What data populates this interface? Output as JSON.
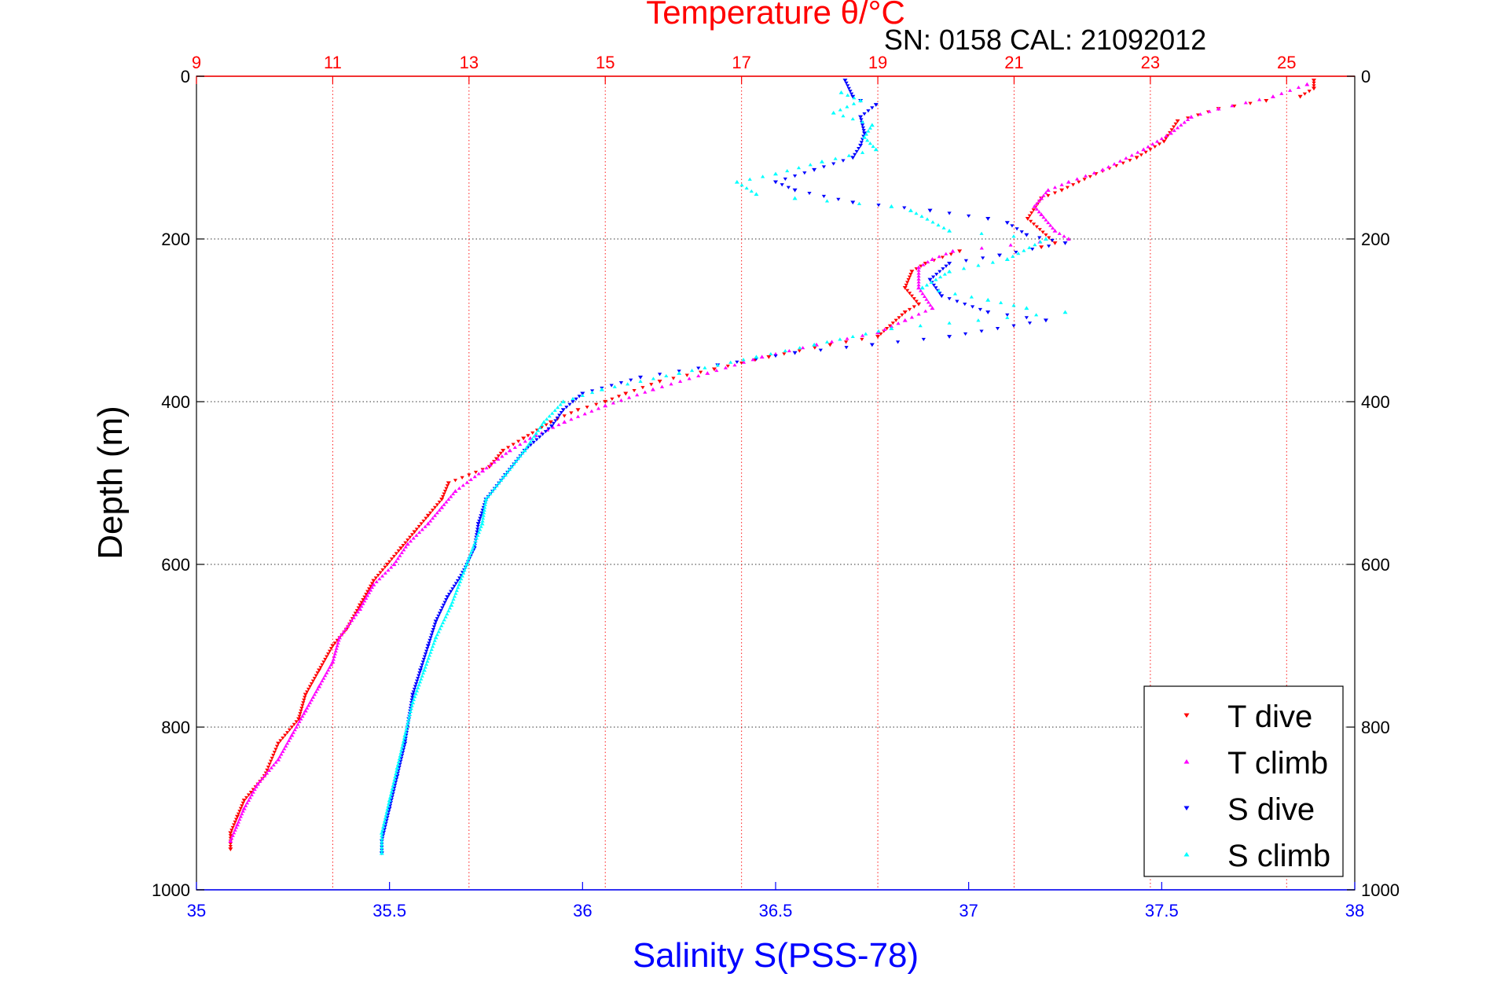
{
  "chart_data": {
    "type": "scatter",
    "title": "Temperature θ/°C",
    "subtitle": "SN: 0158  CAL: 21092012",
    "xlabel": "Salinity S(PSS-78)",
    "ylabel": "Depth (m)",
    "x_top": {
      "label": "Temperature θ/°C",
      "range": [
        9,
        26
      ],
      "ticks": [
        9,
        11,
        13,
        15,
        17,
        19,
        21,
        23,
        25
      ]
    },
    "x_bottom": {
      "label": "Salinity S(PSS-78)",
      "range": [
        35,
        38
      ],
      "ticks": [
        35,
        35.5,
        36,
        36.5,
        37,
        37.5,
        38
      ]
    },
    "y": {
      "range": [
        0,
        1000
      ],
      "reversed": true,
      "ticks": [
        0,
        200,
        400,
        600,
        800,
        1000
      ]
    },
    "grid": "dotted",
    "legend_position": "bottom-right",
    "colors": {
      "t_dive": "#ff0000",
      "t_climb": "#ff00ff",
      "s_dive": "#0000ff",
      "s_climb": "#00ffff",
      "top_axis": "#ff0000",
      "bottom_axis": "#0000ff"
    },
    "series": [
      {
        "name": "T dive",
        "axis": "top",
        "marker": "triangle-down",
        "points": [
          [
            25.4,
            5
          ],
          [
            25.4,
            15
          ],
          [
            25.2,
            25
          ],
          [
            24.7,
            30
          ],
          [
            24.0,
            40
          ],
          [
            23.4,
            55
          ],
          [
            23.2,
            80
          ],
          [
            22.8,
            100
          ],
          [
            22.2,
            120
          ],
          [
            21.7,
            140
          ],
          [
            21.4,
            150
          ],
          [
            21.2,
            175
          ],
          [
            21.6,
            205
          ],
          [
            21.4,
            210
          ],
          [
            20.2,
            215
          ],
          [
            19.7,
            230
          ],
          [
            19.5,
            240
          ],
          [
            19.4,
            260
          ],
          [
            19.6,
            280
          ],
          [
            19.4,
            290
          ],
          [
            19.0,
            320
          ],
          [
            18.3,
            330
          ],
          [
            17.4,
            345
          ],
          [
            16.6,
            360
          ],
          [
            15.8,
            375
          ],
          [
            15.3,
            390
          ],
          [
            15.0,
            400
          ],
          [
            14.6,
            410
          ],
          [
            14.2,
            425
          ],
          [
            13.8,
            445
          ],
          [
            13.5,
            460
          ],
          [
            13.3,
            480
          ],
          [
            12.7,
            500
          ],
          [
            12.6,
            520
          ],
          [
            12.4,
            540
          ],
          [
            12.2,
            560
          ],
          [
            12.0,
            580
          ],
          [
            11.8,
            600
          ],
          [
            11.6,
            620
          ],
          [
            11.4,
            650
          ],
          [
            11.2,
            680
          ],
          [
            11.0,
            700
          ],
          [
            10.8,
            730
          ],
          [
            10.6,
            760
          ],
          [
            10.5,
            790
          ],
          [
            10.2,
            820
          ],
          [
            10.0,
            860
          ],
          [
            9.7,
            890
          ],
          [
            9.6,
            910
          ],
          [
            9.5,
            930
          ],
          [
            9.5,
            950
          ]
        ]
      },
      {
        "name": "T climb",
        "axis": "top",
        "marker": "triangle-up",
        "points": [
          [
            25.3,
            10
          ],
          [
            24.8,
            25
          ],
          [
            24.0,
            40
          ],
          [
            23.6,
            50
          ],
          [
            23.3,
            70
          ],
          [
            22.9,
            90
          ],
          [
            22.3,
            115
          ],
          [
            21.8,
            130
          ],
          [
            21.5,
            140
          ],
          [
            21.4,
            150
          ],
          [
            21.3,
            160
          ],
          [
            21.4,
            170
          ],
          [
            21.6,
            190
          ],
          [
            21.8,
            200
          ],
          [
            20.1,
            215
          ],
          [
            19.8,
            225
          ],
          [
            19.6,
            235
          ],
          [
            19.6,
            260
          ],
          [
            19.8,
            285
          ],
          [
            19.4,
            300
          ],
          [
            19.0,
            315
          ],
          [
            18.1,
            330
          ],
          [
            17.3,
            345
          ],
          [
            16.5,
            365
          ],
          [
            15.7,
            385
          ],
          [
            15.0,
            405
          ],
          [
            14.4,
            425
          ],
          [
            13.9,
            445
          ],
          [
            13.6,
            460
          ],
          [
            13.2,
            485
          ],
          [
            12.8,
            510
          ],
          [
            12.6,
            530
          ],
          [
            12.4,
            550
          ],
          [
            12.1,
            575
          ],
          [
            11.9,
            600
          ],
          [
            11.6,
            625
          ],
          [
            11.4,
            655
          ],
          [
            11.1,
            690
          ],
          [
            11.0,
            720
          ],
          [
            10.8,
            750
          ],
          [
            10.6,
            780
          ],
          [
            10.4,
            810
          ],
          [
            10.2,
            840
          ],
          [
            9.9,
            870
          ],
          [
            9.7,
            900
          ],
          [
            9.6,
            920
          ],
          [
            9.5,
            940
          ]
        ]
      },
      {
        "name": "S dive",
        "axis": "bottom",
        "marker": "triangle-down",
        "points": [
          [
            36.68,
            5
          ],
          [
            36.7,
            25
          ],
          [
            36.72,
            30
          ],
          [
            36.76,
            35
          ],
          [
            36.72,
            50
          ],
          [
            36.73,
            70
          ],
          [
            36.72,
            85
          ],
          [
            36.7,
            100
          ],
          [
            36.6,
            115
          ],
          [
            36.5,
            130
          ],
          [
            36.55,
            140
          ],
          [
            36.7,
            155
          ],
          [
            36.9,
            165
          ],
          [
            37.05,
            175
          ],
          [
            37.1,
            180
          ],
          [
            37.15,
            195
          ],
          [
            37.25,
            205
          ],
          [
            37.08,
            220
          ],
          [
            36.95,
            230
          ],
          [
            36.9,
            250
          ],
          [
            36.93,
            270
          ],
          [
            37.05,
            290
          ],
          [
            37.2,
            300
          ],
          [
            36.95,
            320
          ],
          [
            36.75,
            330
          ],
          [
            36.55,
            340
          ],
          [
            36.35,
            355
          ],
          [
            36.15,
            370
          ],
          [
            36.0,
            390
          ],
          [
            35.95,
            410
          ],
          [
            35.92,
            430
          ],
          [
            35.85,
            460
          ],
          [
            35.8,
            490
          ],
          [
            35.75,
            520
          ],
          [
            35.73,
            550
          ],
          [
            35.72,
            580
          ],
          [
            35.69,
            610
          ],
          [
            35.65,
            640
          ],
          [
            35.62,
            670
          ],
          [
            35.6,
            700
          ],
          [
            35.58,
            730
          ],
          [
            35.56,
            760
          ],
          [
            35.55,
            790
          ],
          [
            35.54,
            820
          ],
          [
            35.52,
            860
          ],
          [
            35.5,
            900
          ],
          [
            35.48,
            940
          ],
          [
            35.48,
            955
          ]
        ]
      },
      {
        "name": "S climb",
        "axis": "bottom",
        "marker": "triangle-up",
        "points": [
          [
            36.67,
            20
          ],
          [
            36.72,
            30
          ],
          [
            36.65,
            45
          ],
          [
            36.75,
            60
          ],
          [
            36.73,
            75
          ],
          [
            36.76,
            90
          ],
          [
            36.62,
            105
          ],
          [
            36.5,
            120
          ],
          [
            36.4,
            130
          ],
          [
            36.45,
            145
          ],
          [
            36.55,
            150
          ],
          [
            36.8,
            160
          ],
          [
            36.85,
            165
          ],
          [
            36.95,
            190
          ],
          [
            37.2,
            200
          ],
          [
            37.1,
            225
          ],
          [
            36.95,
            240
          ],
          [
            36.88,
            260
          ],
          [
            37.05,
            275
          ],
          [
            37.15,
            285
          ],
          [
            37.25,
            290
          ],
          [
            36.8,
            310
          ],
          [
            36.6,
            330
          ],
          [
            36.45,
            345
          ],
          [
            36.25,
            365
          ],
          [
            36.05,
            385
          ],
          [
            35.95,
            400
          ],
          [
            35.9,
            425
          ],
          [
            35.85,
            460
          ],
          [
            35.8,
            490
          ],
          [
            35.75,
            520
          ],
          [
            35.74,
            550
          ],
          [
            35.7,
            600
          ],
          [
            35.66,
            650
          ],
          [
            35.62,
            690
          ],
          [
            35.59,
            730
          ],
          [
            35.56,
            770
          ],
          [
            35.54,
            810
          ],
          [
            35.52,
            850
          ],
          [
            35.5,
            890
          ],
          [
            35.48,
            930
          ],
          [
            35.48,
            955
          ]
        ]
      }
    ]
  }
}
